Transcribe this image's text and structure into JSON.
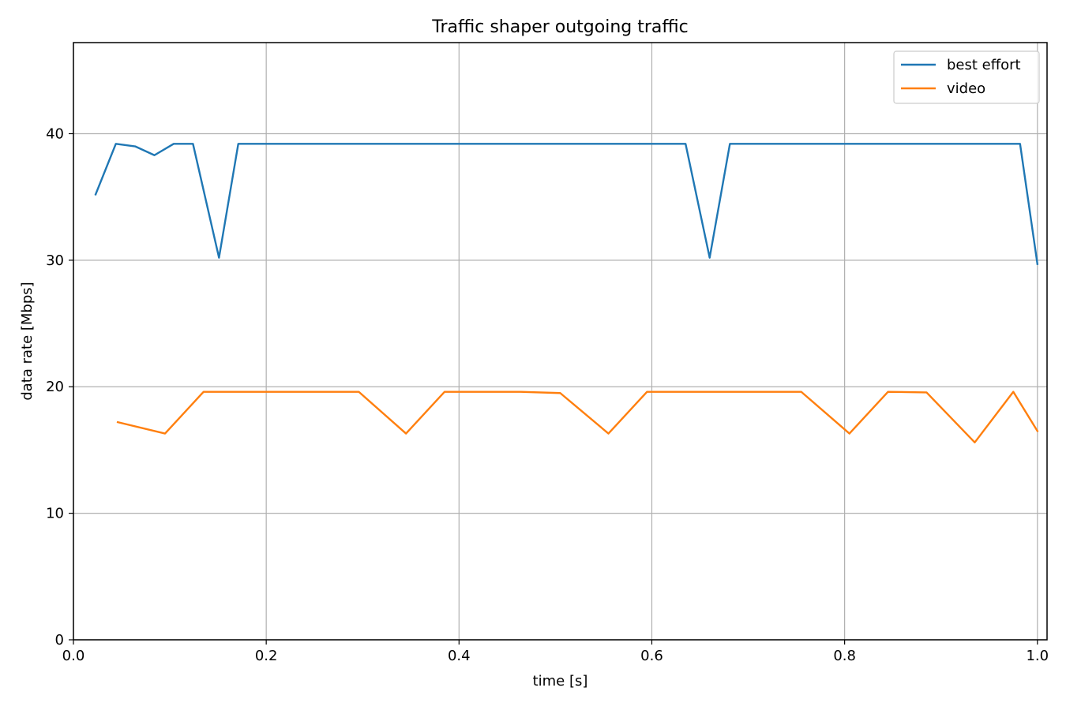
{
  "chart_data": {
    "type": "line",
    "title": "Traffic shaper outgoing traffic",
    "xlabel": "time [s]",
    "ylabel": "data rate [Mbps]",
    "xlim": [
      0.0,
      1.01
    ],
    "ylim": [
      0,
      47.2
    ],
    "xticks": [
      0.0,
      0.2,
      0.4,
      0.6,
      0.8,
      1.0
    ],
    "xtick_labels": [
      "0.0",
      "0.2",
      "0.4",
      "0.6",
      "0.8",
      "1.0"
    ],
    "yticks": [
      0,
      10,
      20,
      30,
      40
    ],
    "ytick_labels": [
      "0",
      "10",
      "20",
      "30",
      "40"
    ],
    "grid": true,
    "legend_position": "top-right",
    "series": [
      {
        "name": "best effort",
        "color": "#1f77b4",
        "x": [
          0.023,
          0.044,
          0.064,
          0.084,
          0.104,
          0.124,
          0.151,
          0.171,
          0.635,
          0.66,
          0.681,
          0.982,
          1.0
        ],
        "y": [
          35.2,
          39.2,
          39.0,
          38.3,
          39.2,
          39.2,
          30.2,
          39.2,
          39.2,
          30.2,
          39.2,
          39.2,
          29.7
        ]
      },
      {
        "name": "video",
        "color": "#ff7f0e",
        "x": [
          0.046,
          0.095,
          0.135,
          0.296,
          0.345,
          0.385,
          0.464,
          0.505,
          0.555,
          0.595,
          0.755,
          0.805,
          0.845,
          0.885,
          0.935,
          0.975,
          1.0
        ],
        "y": [
          17.2,
          16.3,
          19.6,
          19.6,
          16.3,
          19.6,
          19.6,
          19.5,
          16.3,
          19.6,
          19.6,
          16.3,
          19.6,
          19.55,
          15.6,
          19.6,
          16.5
        ]
      }
    ]
  }
}
